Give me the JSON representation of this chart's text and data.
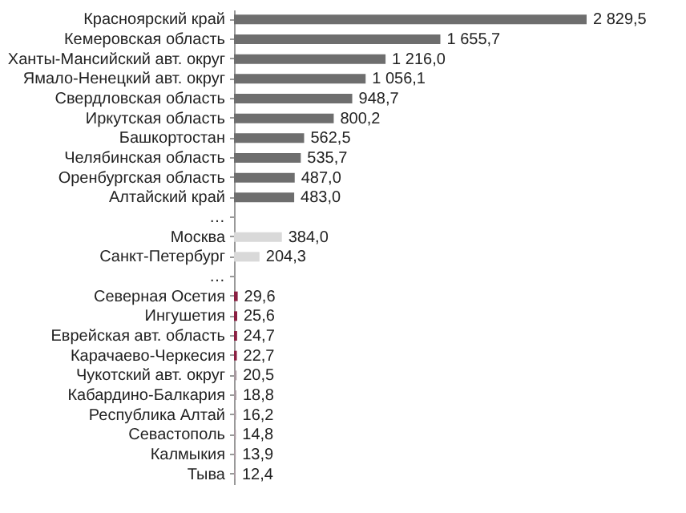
{
  "chart_data": {
    "type": "bar",
    "orientation": "horizontal",
    "categories": [
      "Красноярский край",
      "Кемеровская область",
      "Ханты-Мансийский авт. округ",
      "Ямало-Ненецкий авт. округ",
      "Свердловская область",
      "Иркутская область",
      "Башкортостан",
      "Челябинская область",
      "Оренбургская область",
      "Алтайский край",
      "…",
      "Москва",
      "Санкт-Петербург",
      "…",
      "Северная Осетия",
      "Ингушетия",
      "Еврейская авт. область",
      "Карачаево-Черкесия",
      "Чукотский авт. округ",
      "Кабардино-Балкария",
      "Республика Алтай",
      "Севастополь",
      "Калмыкия",
      "Тыва"
    ],
    "values": [
      2829.5,
      1655.7,
      1216.0,
      1056.1,
      948.7,
      800.2,
      562.5,
      535.7,
      487.0,
      483.0,
      null,
      384.0,
      204.3,
      null,
      29.6,
      25.6,
      24.7,
      22.7,
      20.5,
      18.8,
      16.2,
      14.8,
      13.9,
      12.4
    ],
    "value_labels": [
      "2 829,5",
      "1 655,7",
      "1 216,0",
      "1 056,1",
      "948,7",
      "800,2",
      "562,5",
      "535,7",
      "487,0",
      "483,0",
      null,
      "384,0",
      "204,3",
      null,
      "29,6",
      "25,6",
      "24,7",
      "22,7",
      "20,5",
      "18,8",
      "16,2",
      "14,8",
      "13,9",
      "12,4"
    ],
    "colors": [
      "#6e6e6e",
      "#6e6e6e",
      "#6e6e6e",
      "#6e6e6e",
      "#6e6e6e",
      "#6e6e6e",
      "#6e6e6e",
      "#6e6e6e",
      "#6e6e6e",
      "#6e6e6e",
      null,
      "#d9d9d9",
      "#d9d9d9",
      null,
      "#8b2042",
      "#8b2042",
      "#8b2042",
      "#8b2042",
      "#a89aa0",
      "#a89aa0",
      "#a89aa0",
      "#a89aa0",
      "#a89aa0",
      "#a89aa0"
    ]
  }
}
